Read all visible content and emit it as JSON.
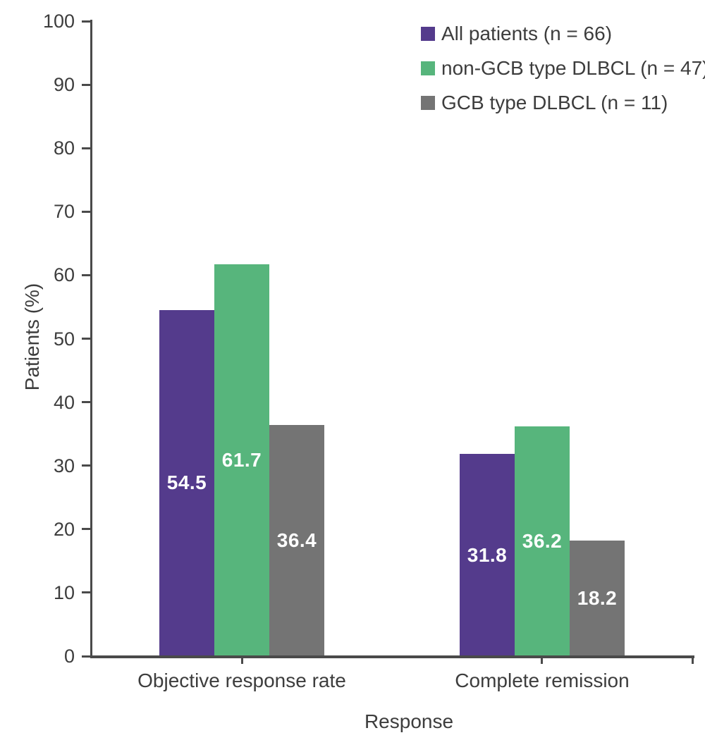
{
  "chart_data": {
    "type": "bar",
    "title": "",
    "xlabel": "Response",
    "ylabel": "Patients (%)",
    "ylim": [
      0,
      100
    ],
    "yticks": [
      0,
      10,
      20,
      30,
      40,
      50,
      60,
      70,
      80,
      90,
      100
    ],
    "categories": [
      "Objective response rate",
      "Complete remission"
    ],
    "series": [
      {
        "name": "All patients (n = 66)",
        "color": "#543b8c",
        "values": [
          54.5,
          31.8
        ]
      },
      {
        "name": "non-GCB type DLBCL (n = 47)",
        "color": "#57b57c",
        "values": [
          61.7,
          36.2
        ]
      },
      {
        "name": "GCB type DLBCL (n = 11)",
        "color": "#747474",
        "values": [
          36.4,
          18.2
        ]
      }
    ],
    "value_labels": true,
    "value_label_color": "#ffffff",
    "legend_position": "top-right",
    "grid": false,
    "axis_color": "#4a4a4a",
    "text_color": "#3d3d3d"
  }
}
